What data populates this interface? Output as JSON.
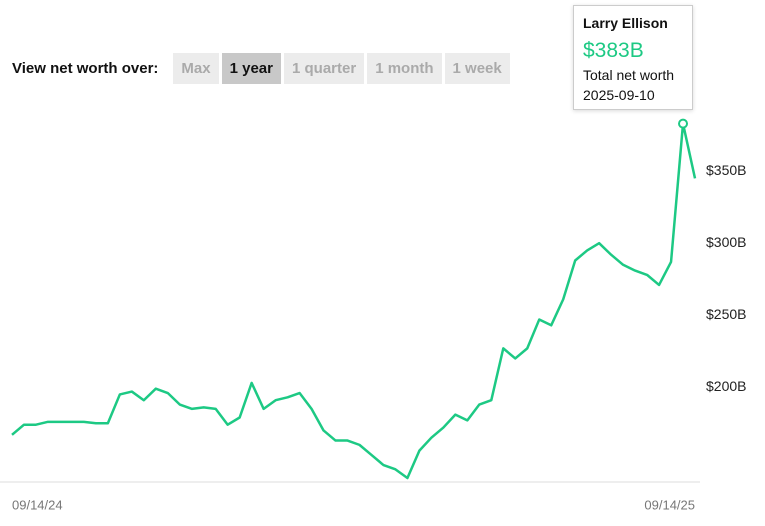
{
  "chart_data": {
    "type": "line",
    "controls": {
      "label": "View net worth over:",
      "options": [
        "Max",
        "1 year",
        "1 quarter",
        "1 month",
        "1 week"
      ],
      "active": "1 year"
    },
    "tooltip": {
      "title": "Larry Ellison",
      "value": 383,
      "value_label": "$383B",
      "caption": "Total net worth",
      "date": "2025-09-10"
    },
    "categories": [
      "09/14/24",
      null,
      null,
      null,
      null,
      null,
      null,
      null,
      null,
      null,
      null,
      null,
      null,
      null,
      null,
      null,
      null,
      null,
      null,
      null,
      null,
      null,
      null,
      null,
      null,
      null,
      null,
      null,
      null,
      null,
      null,
      null,
      null,
      null,
      null,
      null,
      null,
      null,
      null,
      null,
      null,
      null,
      null,
      null,
      null,
      null,
      null,
      null,
      null,
      null,
      null,
      null,
      null,
      null,
      null,
      null,
      null,
      "09/14/25"
    ],
    "series": [
      {
        "name": "Larry Ellison",
        "color": "#1dc984",
        "values": [
          167,
          174,
          174,
          176,
          176,
          176,
          176,
          175,
          175,
          195,
          197,
          191,
          199,
          196,
          188,
          185,
          186,
          185,
          174,
          179,
          203,
          185,
          191,
          193,
          196,
          185,
          170,
          163,
          163,
          160,
          153,
          146,
          143,
          137,
          156,
          165,
          172,
          181,
          177,
          188,
          191,
          227,
          220,
          227,
          247,
          243,
          261,
          288,
          295,
          300,
          292,
          285,
          281,
          278,
          271,
          287,
          383,
          345
        ]
      }
    ],
    "ylim": [
      137,
      389
    ],
    "yticks": [
      {
        "value": 200,
        "label": "$200B"
      },
      {
        "value": 250,
        "label": "$250B"
      },
      {
        "value": 300,
        "label": "$300B"
      },
      {
        "value": 350,
        "label": "$350B"
      }
    ],
    "grid": false
  }
}
